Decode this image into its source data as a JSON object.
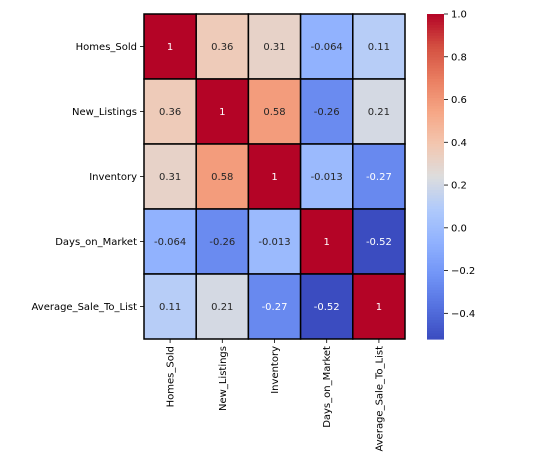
{
  "chart_data": {
    "type": "heatmap",
    "title": "",
    "rows": [
      "Homes_Sold",
      "New_Listings",
      "Inventory",
      "Days_on_Market",
      "Average_Sale_To_List"
    ],
    "columns": [
      "Homes_Sold",
      "New_Listings",
      "Inventory",
      "Days_on_Market",
      "Average_Sale_To_List"
    ],
    "values": [
      [
        1,
        0.36,
        0.31,
        -0.064,
        0.11
      ],
      [
        0.36,
        1,
        0.58,
        -0.26,
        0.21
      ],
      [
        0.31,
        0.58,
        1,
        -0.013,
        -0.27
      ],
      [
        -0.064,
        -0.26,
        -0.013,
        1,
        -0.52
      ],
      [
        0.11,
        0.21,
        -0.27,
        -0.52,
        1
      ]
    ],
    "cell_labels": [
      [
        "1",
        "0.36",
        "0.31",
        "-0.064",
        "0.11"
      ],
      [
        "0.36",
        "1",
        "0.58",
        "-0.26",
        "0.21"
      ],
      [
        "0.31",
        "0.58",
        "1",
        "-0.013",
        "-0.27"
      ],
      [
        "-0.064",
        "-0.26",
        "-0.013",
        "1",
        "-0.52"
      ],
      [
        "0.11",
        "0.21",
        "-0.27",
        "-0.52",
        "1"
      ]
    ],
    "colormap": "coolwarm",
    "vmin": -0.52,
    "vmax": 1.0,
    "cell_border_color": "#000000",
    "colorbar": {
      "ticks": [
        1.0,
        0.8,
        0.6,
        0.4,
        0.2,
        0.0,
        -0.2,
        -0.4
      ],
      "tick_labels": [
        "1.0",
        "0.8",
        "0.6",
        "0.4",
        "0.2",
        "0.0",
        "−0.2",
        "−0.4"
      ]
    }
  }
}
